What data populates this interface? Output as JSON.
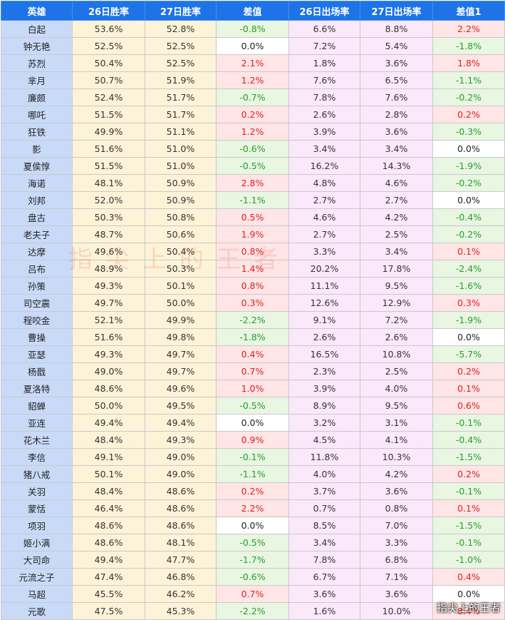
{
  "headers": [
    "英雄",
    "26日胜率",
    "27日胜率",
    "差值",
    "26日出场率",
    "27日出场率",
    "差值1"
  ],
  "rows": [
    [
      "白起",
      "53.6%",
      "52.8%",
      "-0.8%",
      "6.6%",
      "8.8%",
      "2.2%"
    ],
    [
      "钟无艳",
      "52.5%",
      "52.5%",
      "0.0%",
      "7.2%",
      "5.4%",
      "-1.8%"
    ],
    [
      "苏烈",
      "50.4%",
      "52.5%",
      "2.1%",
      "1.8%",
      "3.6%",
      "1.8%"
    ],
    [
      "芈月",
      "50.7%",
      "51.9%",
      "1.2%",
      "7.6%",
      "6.5%",
      "-1.1%"
    ],
    [
      "廉颇",
      "52.4%",
      "51.7%",
      "-0.7%",
      "7.8%",
      "7.6%",
      "-0.2%"
    ],
    [
      "哪吒",
      "51.5%",
      "51.7%",
      "0.2%",
      "2.6%",
      "2.8%",
      "0.2%"
    ],
    [
      "狂铁",
      "49.9%",
      "51.1%",
      "1.2%",
      "3.9%",
      "3.6%",
      "-0.3%"
    ],
    [
      "影",
      "51.6%",
      "51.0%",
      "-0.6%",
      "3.4%",
      "3.4%",
      "0.0%"
    ],
    [
      "夏侯惇",
      "51.5%",
      "51.0%",
      "-0.5%",
      "16.2%",
      "14.3%",
      "-1.9%"
    ],
    [
      "海诺",
      "48.1%",
      "50.9%",
      "2.8%",
      "4.8%",
      "4.6%",
      "-0.2%"
    ],
    [
      "刘邦",
      "52.0%",
      "50.9%",
      "-1.1%",
      "2.7%",
      "2.7%",
      "0.0%"
    ],
    [
      "盘古",
      "50.3%",
      "50.8%",
      "0.5%",
      "4.6%",
      "4.2%",
      "-0.4%"
    ],
    [
      "老夫子",
      "48.7%",
      "50.6%",
      "1.9%",
      "2.7%",
      "2.5%",
      "-0.2%"
    ],
    [
      "达摩",
      "49.6%",
      "50.4%",
      "0.8%",
      "3.3%",
      "3.4%",
      "0.1%"
    ],
    [
      "吕布",
      "48.9%",
      "50.3%",
      "1.4%",
      "20.2%",
      "17.8%",
      "-2.4%"
    ],
    [
      "孙策",
      "49.3%",
      "50.1%",
      "0.8%",
      "11.1%",
      "9.5%",
      "-1.6%"
    ],
    [
      "司空震",
      "49.7%",
      "50.0%",
      "0.3%",
      "12.6%",
      "12.9%",
      "0.3%"
    ],
    [
      "程咬金",
      "52.1%",
      "49.9%",
      "-2.2%",
      "9.1%",
      "7.2%",
      "-1.9%"
    ],
    [
      "曹操",
      "51.6%",
      "49.8%",
      "-1.8%",
      "2.6%",
      "2.6%",
      "0.0%"
    ],
    [
      "亚瑟",
      "49.3%",
      "49.7%",
      "0.4%",
      "16.5%",
      "10.8%",
      "-5.7%"
    ],
    [
      "杨戬",
      "49.0%",
      "49.7%",
      "0.7%",
      "2.3%",
      "2.5%",
      "0.2%"
    ],
    [
      "夏洛特",
      "48.6%",
      "49.6%",
      "1.0%",
      "3.9%",
      "4.0%",
      "0.1%"
    ],
    [
      "貂蝉",
      "50.0%",
      "49.5%",
      "-0.5%",
      "8.9%",
      "9.5%",
      "0.6%"
    ],
    [
      "亚连",
      "49.4%",
      "49.4%",
      "0.0%",
      "3.2%",
      "3.1%",
      "-0.1%"
    ],
    [
      "花木兰",
      "48.4%",
      "49.3%",
      "0.9%",
      "4.5%",
      "4.1%",
      "-0.4%"
    ],
    [
      "李信",
      "49.1%",
      "49.0%",
      "-0.1%",
      "11.8%",
      "10.3%",
      "-1.5%"
    ],
    [
      "猪八戒",
      "50.1%",
      "49.0%",
      "-1.1%",
      "4.0%",
      "4.2%",
      "0.2%"
    ],
    [
      "关羽",
      "48.4%",
      "48.6%",
      "0.2%",
      "3.7%",
      "3.6%",
      "-0.1%"
    ],
    [
      "蒙恬",
      "46.4%",
      "48.6%",
      "2.2%",
      "0.7%",
      "0.8%",
      "0.1%"
    ],
    [
      "项羽",
      "48.6%",
      "48.6%",
      "0.0%",
      "8.5%",
      "7.0%",
      "-1.5%"
    ],
    [
      "姬小满",
      "48.6%",
      "48.1%",
      "-0.5%",
      "3.4%",
      "3.3%",
      "-0.1%"
    ],
    [
      "大司命",
      "49.4%",
      "47.7%",
      "-1.7%",
      "7.8%",
      "6.8%",
      "-1.0%"
    ],
    [
      "元流之子",
      "47.4%",
      "46.8%",
      "-0.6%",
      "6.7%",
      "7.1%",
      "0.4%"
    ],
    [
      "马超",
      "45.5%",
      "46.2%",
      "0.7%",
      "3.6%",
      "3.6%",
      "0.0%"
    ],
    [
      "元歌",
      "47.5%",
      "45.3%",
      "-2.2%",
      "1.6%",
      "10.0%",
      "8.4%"
    ]
  ],
  "watermark": "指尖上的王者",
  "corner_watermark": "指尖上的王者",
  "colors": {
    "header_bg": "#1e73e8",
    "hero_bg": "#c9daf8",
    "rate_bg": "#fdf3d8",
    "apps_bg": "#fbe8fb",
    "positive_bg": "#ffe5e5",
    "positive_text": "#e02020",
    "negative_bg": "#e8f6e2",
    "negative_text": "#2a9d2a"
  }
}
